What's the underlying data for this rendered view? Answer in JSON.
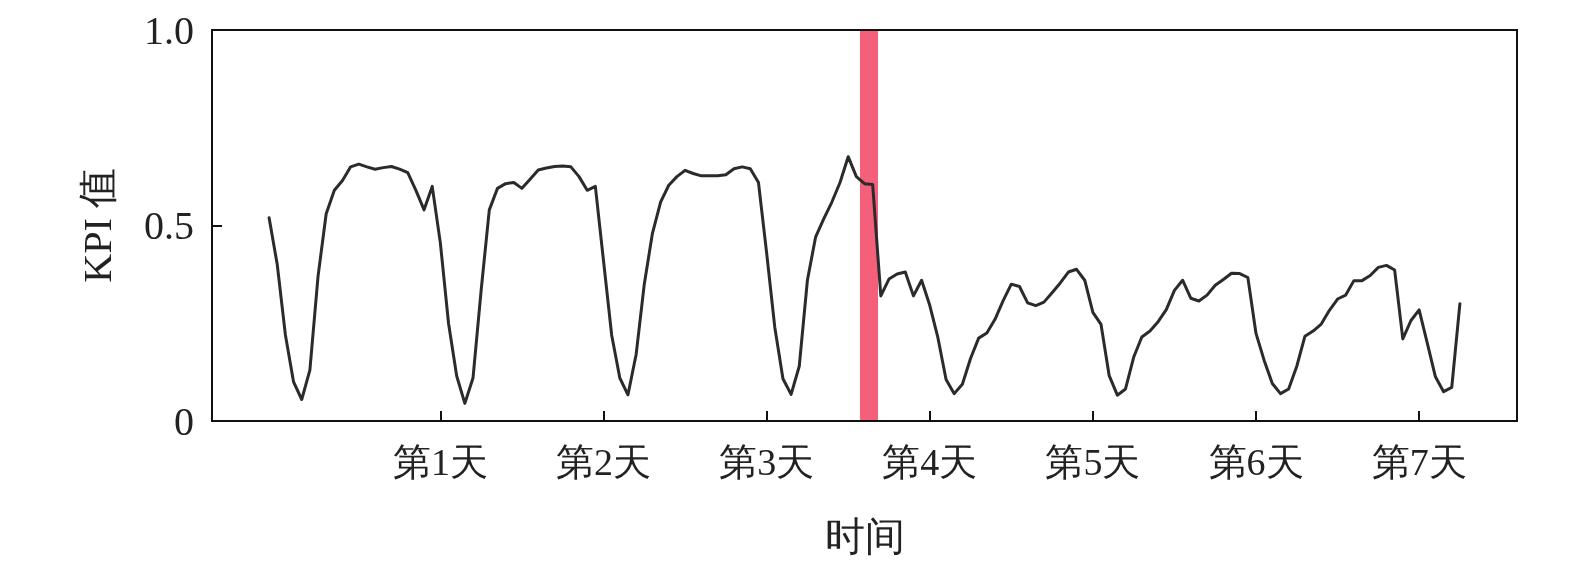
{
  "chart_data": {
    "type": "line",
    "xlabel": "时间",
    "ylabel": "KPI 值",
    "categories": [
      null,
      null,
      null,
      null,
      null,
      null,
      null,
      null,
      null,
      null,
      null,
      null,
      null,
      null,
      null,
      null,
      null,
      null,
      null,
      null,
      null,
      null,
      null,
      null,
      null,
      null,
      null,
      null,
      "第1天",
      null,
      null,
      null,
      null,
      null,
      null,
      null,
      null,
      null,
      null,
      null,
      null,
      null,
      null,
      null,
      null,
      null,
      null,
      null,
      "第2天",
      null,
      null,
      null,
      null,
      null,
      null,
      null,
      null,
      null,
      null,
      null,
      null,
      null,
      null,
      null,
      null,
      null,
      null,
      null,
      "第3天",
      null,
      null,
      null,
      null,
      null,
      null,
      null,
      null,
      null,
      null,
      null,
      null,
      null,
      null,
      null,
      null,
      null,
      null,
      null,
      "第4天",
      null,
      null,
      null,
      null,
      null,
      null,
      null,
      null,
      null,
      null,
      null,
      null,
      null,
      null,
      null,
      null,
      null,
      null,
      null,
      "第5天",
      null,
      null,
      null,
      null,
      null,
      null,
      null,
      null,
      null,
      null,
      null,
      null,
      null,
      null,
      null,
      null,
      null,
      null,
      null,
      "第6天",
      null,
      null,
      null,
      null,
      null,
      null,
      null,
      null,
      null,
      null,
      null,
      null,
      null,
      null,
      null,
      null,
      null,
      null,
      null,
      "第7天",
      null,
      null,
      null,
      null,
      null,
      null,
      null,
      null,
      null,
      null,
      null,
      null
    ],
    "ylim": [
      0,
      1
    ],
    "yticks": [
      0,
      0.5,
      {
        "value": 1,
        "label": "1.0"
      }
    ],
    "grid": false,
    "marker": "none",
    "line_style": "solid",
    "series": [
      {
        "color": "#2b2b2b",
        "values": [
          null,
          null,
          null,
          null,
          null,
          null,
          null,
          0.52,
          0.4,
          0.22,
          0.1,
          0.055,
          0.13,
          0.37,
          0.53,
          0.59,
          0.615,
          0.65,
          0.657,
          0.65,
          0.644,
          0.648,
          0.651,
          0.644,
          0.635,
          0.59,
          0.54,
          0.6,
          0.455,
          0.25,
          0.115,
          0.045,
          0.11,
          0.335,
          0.54,
          0.595,
          0.607,
          0.61,
          0.595,
          0.618,
          0.642,
          0.647,
          0.651,
          0.652,
          0.65,
          0.625,
          0.59,
          0.6,
          0.41,
          0.22,
          0.11,
          0.067,
          0.17,
          0.35,
          0.48,
          0.56,
          0.603,
          0.625,
          0.641,
          0.633,
          0.627,
          0.627,
          0.627,
          0.63,
          0.645,
          0.65,
          0.645,
          0.61,
          0.43,
          0.24,
          0.108,
          0.068,
          0.14,
          0.36,
          0.47,
          0.517,
          0.56,
          0.61,
          0.676,
          0.625,
          0.607,
          0.605,
          0.32,
          0.363,
          0.376,
          0.381,
          0.32,
          0.36,
          0.296,
          0.213,
          0.106,
          0.07,
          0.094,
          0.16,
          0.212,
          0.225,
          0.26,
          0.308,
          0.35,
          0.344,
          0.302,
          0.295,
          0.304,
          0.328,
          0.353,
          0.381,
          0.388,
          0.36,
          0.278,
          0.247,
          0.116,
          0.066,
          0.082,
          0.163,
          0.215,
          0.23,
          0.254,
          0.285,
          0.334,
          0.36,
          0.314,
          0.307,
          0.322,
          0.347,
          0.362,
          0.378,
          0.377,
          0.367,
          0.224,
          0.155,
          0.096,
          0.07,
          0.082,
          0.14,
          0.217,
          0.23,
          0.248,
          0.283,
          0.312,
          0.322,
          0.359,
          0.359,
          0.372,
          0.393,
          0.398,
          0.386,
          0.21,
          0.257,
          0.284,
          0.199,
          0.113,
          0.075,
          0.086,
          0.3,
          null,
          null,
          null,
          null,
          null,
          null,
          null
        ]
      }
    ]
  }
}
